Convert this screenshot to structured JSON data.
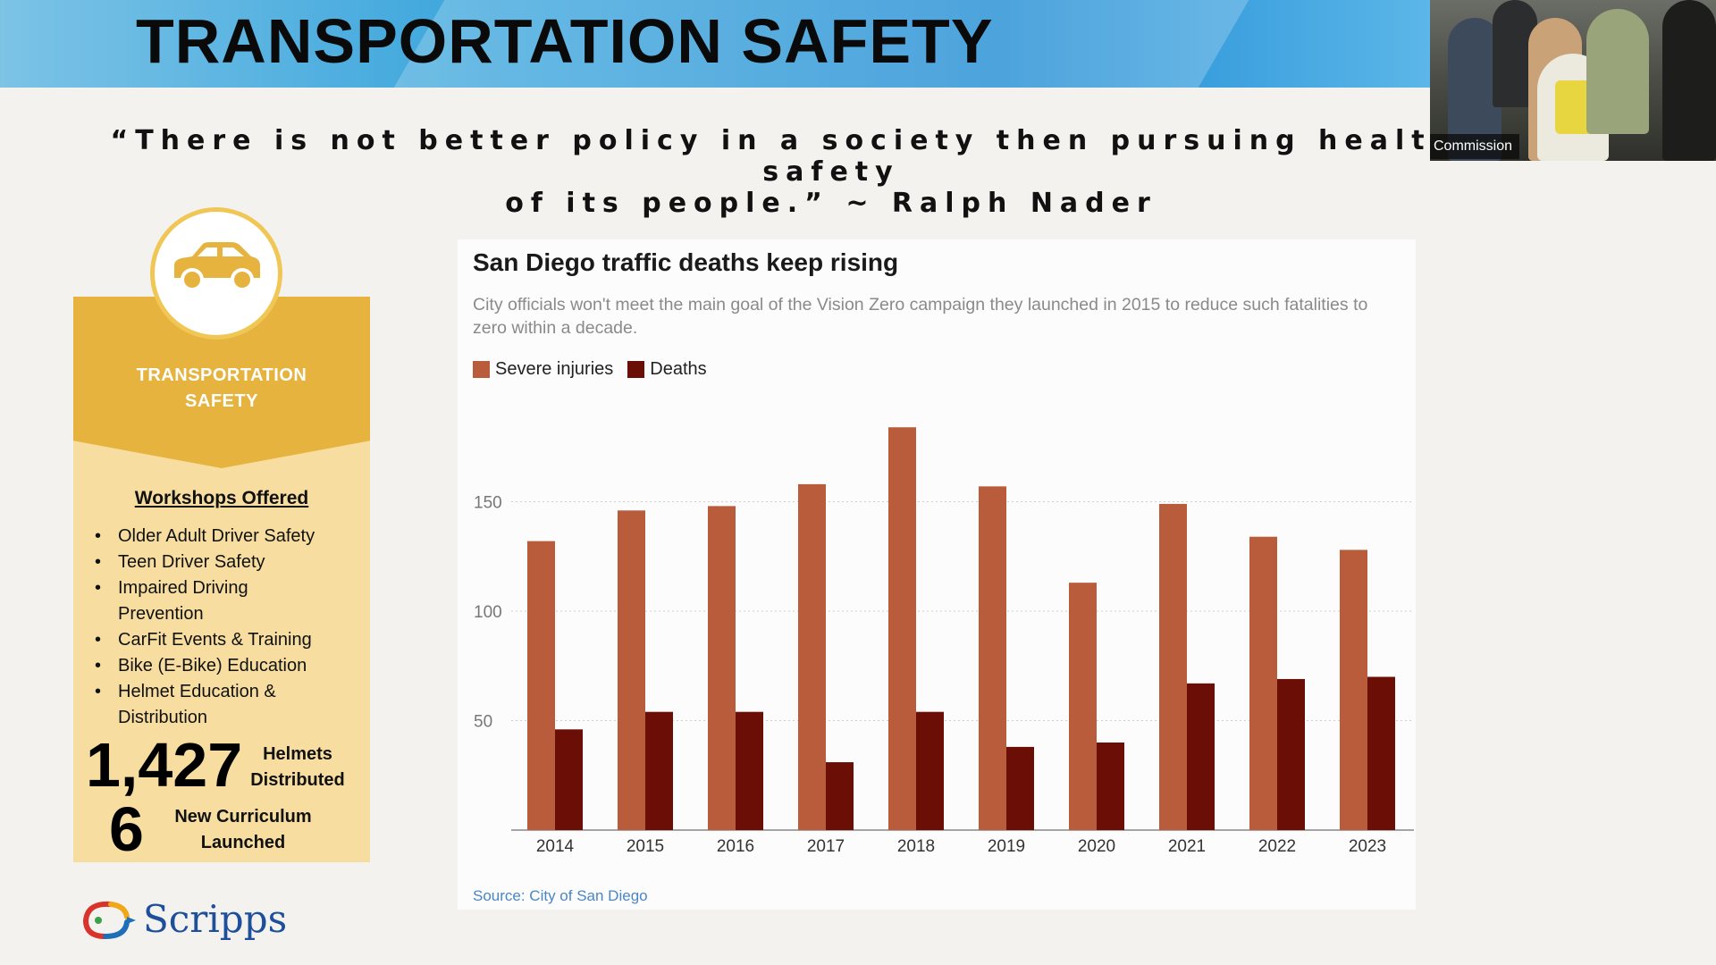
{
  "header": {
    "title": "TRANSPORTATION SAFETY"
  },
  "quote": {
    "line1": "“There is not better policy in a society then pursuing health and safety",
    "line2": "of its people.” ~ Ralph Nader"
  },
  "video": {
    "label": "Commission"
  },
  "card": {
    "title_line1": "TRANSPORTATION",
    "title_line2": "SAFETY",
    "workshops_title": "Workshops Offered",
    "workshops": [
      "Older Adult Driver Safety",
      "Teen Driver Safety",
      "Impaired Driving Prevention",
      "CarFit Events & Training",
      "Bike (E-Bike) Education",
      "Helmet Education & Distribution"
    ],
    "stat1_value": "1,427",
    "stat1_label_line1": "Helmets",
    "stat1_label_line2": "Distributed",
    "stat2_value": "6",
    "stat2_label_line1": "New Curriculum",
    "stat2_label_line2": "Launched"
  },
  "logo": {
    "text": "Scripps"
  },
  "colors": {
    "severe": "#b85c3b",
    "deaths": "#6b0e06",
    "band": "#e6b33f",
    "card": "#f7dea0"
  },
  "chart_data": {
    "type": "bar",
    "title": "San Diego traffic deaths keep rising",
    "subtitle": "City officials won't meet the main goal of the Vision Zero campaign they launched in 2015 to reduce such fatalities to zero within a decade.",
    "categories": [
      "2014",
      "2015",
      "2016",
      "2017",
      "2018",
      "2019",
      "2020",
      "2021",
      "2022",
      "2023"
    ],
    "series": [
      {
        "name": "Severe injuries",
        "values": [
          132,
          146,
          148,
          158,
          184,
          157,
          113,
          149,
          134,
          128
        ]
      },
      {
        "name": "Deaths",
        "values": [
          46,
          54,
          54,
          31,
          54,
          38,
          40,
          67,
          69,
          70
        ]
      }
    ],
    "yticks": [
      50,
      100,
      150
    ],
    "ylim": [
      0,
      185
    ],
    "grid": true,
    "legend_position": "top-left",
    "source": "Source: City of San Diego"
  }
}
